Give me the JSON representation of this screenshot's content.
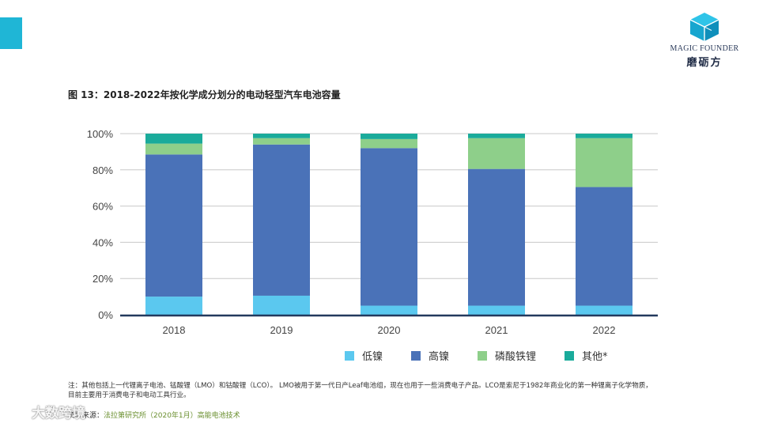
{
  "brand": {
    "name_en": "MAGIC FOUNDER",
    "name_cn": "磨砺方",
    "accent_color": "#1fb6d6"
  },
  "figure": {
    "title": "图 13：2018-2022年按化学成分划分的电动轻型汽车电池容量"
  },
  "chart_data": {
    "type": "bar",
    "stacked": true,
    "categories": [
      "2018",
      "2019",
      "2020",
      "2021",
      "2022"
    ],
    "series": [
      {
        "name": "低镍",
        "color": "#5bc8ef",
        "values": [
          10,
          10.5,
          5,
          5,
          5
        ]
      },
      {
        "name": "高镍",
        "color": "#4a72b8",
        "values": [
          78.5,
          83.5,
          87,
          75.5,
          65.5
        ]
      },
      {
        "name": "磷酸铁锂",
        "color": "#8ecf8a",
        "values": [
          6,
          3.5,
          5,
          17,
          27
        ]
      },
      {
        "name": "其他*",
        "color": "#1aab9b",
        "values": [
          5.5,
          2.5,
          3,
          2.5,
          2.5
        ]
      }
    ],
    "yticks": [
      "0%",
      "20%",
      "40%",
      "60%",
      "80%",
      "100%"
    ],
    "ylim": [
      0,
      100
    ],
    "grid": true,
    "legend_position": "bottom"
  },
  "footnote": {
    "text": "注：其他包括上一代锂离子电池、锰酸锂（LMO）和钴酸锂（LCO）。 LMO被用于第一代日产Leaf电池组，现在也用于一些消费电子产品。LCO是索尼于1982年商业化的第一种锂离子化学物质，目前主要用于消费电子和电动工具行业。",
    "source_label": "资料来源：",
    "source_text": "法拉第研究所（2020年1月）高能电池技术"
  },
  "watermark": {
    "text": "大数跨境"
  }
}
